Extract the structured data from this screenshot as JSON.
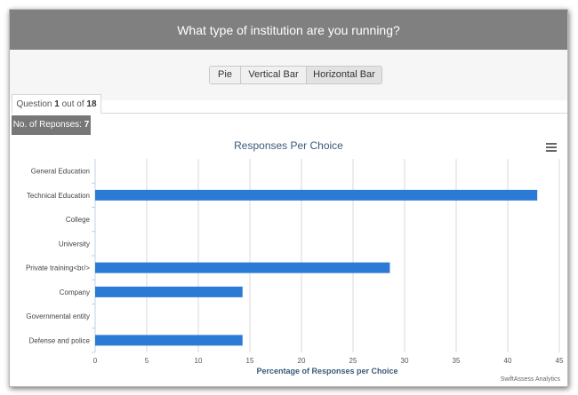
{
  "header": {
    "title": "What type of institution are you running?"
  },
  "toggle": {
    "buttons": [
      "Pie",
      "Vertical Bar",
      "Horizontal Bar"
    ],
    "active": "Horizontal Bar"
  },
  "question": {
    "prefix": "Question",
    "current": "1",
    "middle": "out of",
    "total": "18"
  },
  "responses": {
    "label": "No. of Reponses:",
    "count": "7"
  },
  "menu_icon": "hamburger-menu-icon",
  "credit": "SwiftAssess Analytics",
  "colors": {
    "bar": "#2b7bd6",
    "header": "#808080",
    "title": "#3a5a78"
  },
  "chart_data": {
    "type": "bar",
    "orientation": "horizontal",
    "title": "Responses Per Choice",
    "xlabel": "Percentage of Responses per Choice",
    "categories": [
      "General Education",
      "Technical Education",
      "College",
      "University",
      "Private training<br/>",
      "Company",
      "Governmental entity",
      "Defense and police"
    ],
    "values": [
      0,
      42.86,
      0,
      0,
      28.57,
      14.29,
      0,
      14.29
    ],
    "xlim": [
      0,
      45
    ],
    "xticks": [
      0,
      5,
      10,
      15,
      20,
      25,
      30,
      35,
      40,
      45
    ],
    "grid": true,
    "legend": "none"
  }
}
